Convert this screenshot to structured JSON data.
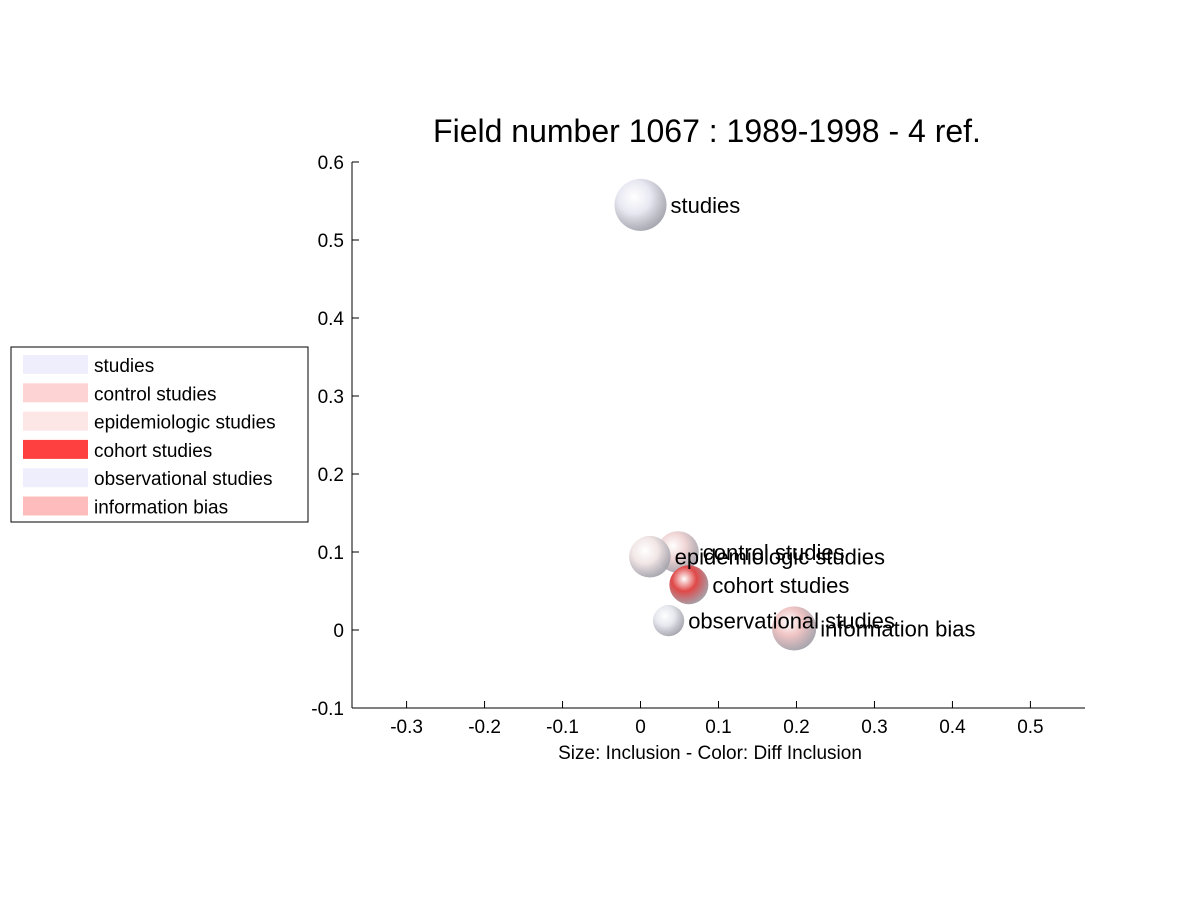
{
  "chart_data": {
    "type": "scatter",
    "title": "Field number 1067 : 1989-1998  - 4 ref.",
    "xlabel": "Size: Inclusion - Color: Diff Inclusion",
    "ylabel": "",
    "xlim": [
      -0.37,
      0.57
    ],
    "ylim": [
      -0.1,
      0.6
    ],
    "xticks": [
      -0.3,
      -0.2,
      -0.1,
      0,
      0.1,
      0.2,
      0.3,
      0.4,
      0.5
    ],
    "xtick_labels": [
      "-0.3",
      "-0.2",
      "-0.1",
      "0",
      "0.1",
      "0.2",
      "0.3",
      "0.4",
      "0.5"
    ],
    "yticks": [
      -0.1,
      0,
      0.1,
      0.2,
      0.3,
      0.4,
      0.5,
      0.6
    ],
    "ytick_labels": [
      "-0.1",
      "0",
      "0.1",
      "0.2",
      "0.3",
      "0.4",
      "0.5",
      "0.6"
    ],
    "grid": false,
    "legend_position": "left",
    "points": [
      {
        "label": "studies",
        "x": 0.0,
        "y": 0.545,
        "size": 1.0,
        "color": "#e8e8f2",
        "legend_color": "#eeeefc"
      },
      {
        "label": "control studies",
        "x": 0.048,
        "y": 0.1,
        "size": 0.8,
        "color": "#f0d4d4",
        "legend_color": "#fdd3d3"
      },
      {
        "label": "epidemiologic studies",
        "x": 0.012,
        "y": 0.094,
        "size": 0.8,
        "color": "#f2e6e6",
        "legend_color": "#fde6e6"
      },
      {
        "label": "cohort studies",
        "x": 0.062,
        "y": 0.058,
        "size": 0.75,
        "color": "#e04848",
        "legend_color": "#ff4040"
      },
      {
        "label": "observational studies",
        "x": 0.036,
        "y": 0.012,
        "size": 0.6,
        "color": "#e6e8ee",
        "legend_color": "#eeeefc"
      },
      {
        "label": "information bias",
        "x": 0.197,
        "y": 0.002,
        "size": 0.85,
        "color": "#f0c4c4",
        "legend_color": "#ffbcbc"
      }
    ]
  }
}
